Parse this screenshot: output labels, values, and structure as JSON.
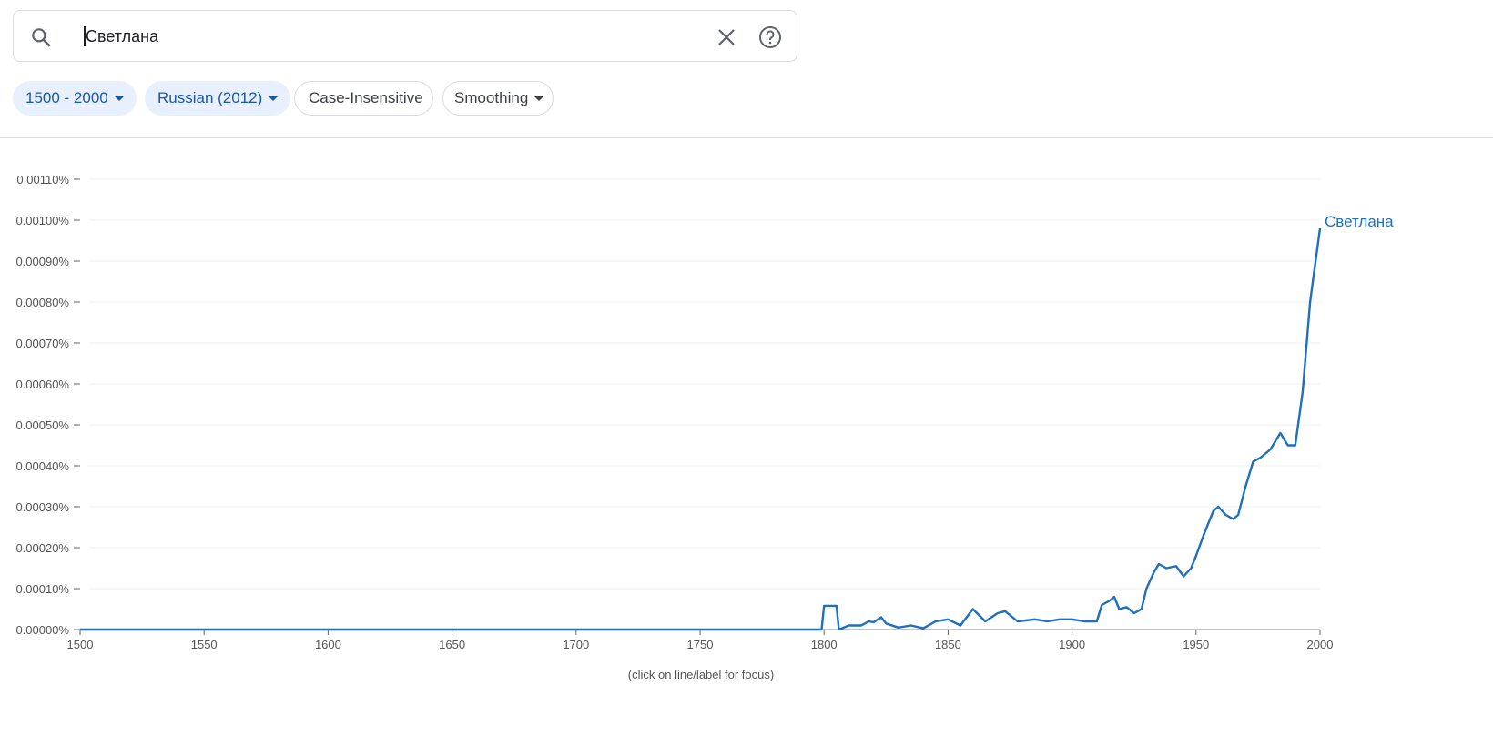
{
  "search": {
    "query": "Светлана",
    "icons": [
      "search-icon",
      "close-icon",
      "help-icon"
    ]
  },
  "filters": [
    {
      "label": "1500 - 2000",
      "selected": true,
      "dropdown": true
    },
    {
      "label": "Russian (2012)",
      "selected": true,
      "dropdown": true
    },
    {
      "label": "Case-Insensitive",
      "selected": false,
      "dropdown": false
    },
    {
      "label": "Smoothing",
      "selected": false,
      "dropdown": true
    }
  ],
  "footnote": "(click on line/label for focus)",
  "colors": {
    "series": "#1f6fc0",
    "chip_bg": "#e8f0fe",
    "chip_text": "#1a57a5"
  },
  "chart_data": {
    "type": "line",
    "xlim": [
      1500,
      2000
    ],
    "ylim": [
      0,
      0.0011
    ],
    "x_ticks": [
      "1500",
      "1550",
      "1600",
      "1650",
      "1700",
      "1750",
      "1800",
      "1850",
      "1900",
      "1950",
      "2000"
    ],
    "y_ticks": [
      "0.00000%",
      "0.00010%",
      "0.00020%",
      "0.00030%",
      "0.00040%",
      "0.00050%",
      "0.00060%",
      "0.00070%",
      "0.00080%",
      "0.00090%",
      "0.00100%",
      "0.00110%"
    ],
    "grid": true,
    "series": [
      {
        "name": "Светлана",
        "points": [
          [
            1500,
            0
          ],
          [
            1799,
            0
          ],
          [
            1800,
            5.8e-05
          ],
          [
            1805,
            5.8e-05
          ],
          [
            1806,
            0
          ],
          [
            1810,
            1e-05
          ],
          [
            1815,
            1e-05
          ],
          [
            1818,
            2e-05
          ],
          [
            1820,
            1.8e-05
          ],
          [
            1823,
            3e-05
          ],
          [
            1825,
            1.5e-05
          ],
          [
            1830,
            5e-06
          ],
          [
            1835,
            1e-05
          ],
          [
            1840,
            3e-06
          ],
          [
            1845,
            2e-05
          ],
          [
            1850,
            2.5e-05
          ],
          [
            1855,
            1e-05
          ],
          [
            1860,
            5e-05
          ],
          [
            1865,
            2e-05
          ],
          [
            1870,
            4e-05
          ],
          [
            1873,
            4.5e-05
          ],
          [
            1878,
            2e-05
          ],
          [
            1885,
            2.5e-05
          ],
          [
            1890,
            2e-05
          ],
          [
            1895,
            2.5e-05
          ],
          [
            1900,
            2.5e-05
          ],
          [
            1905,
            2e-05
          ],
          [
            1910,
            2e-05
          ],
          [
            1912,
            6e-05
          ],
          [
            1915,
            7e-05
          ],
          [
            1917,
            8e-05
          ],
          [
            1919,
            5e-05
          ],
          [
            1922,
            5.5e-05
          ],
          [
            1925,
            4e-05
          ],
          [
            1928,
            5e-05
          ],
          [
            1930,
            0.0001
          ],
          [
            1933,
            0.00014
          ],
          [
            1935,
            0.00016
          ],
          [
            1938,
            0.00015
          ],
          [
            1942,
            0.000155
          ],
          [
            1945,
            0.00013
          ],
          [
            1948,
            0.00015
          ],
          [
            1950,
            0.00018
          ],
          [
            1953,
            0.00023
          ],
          [
            1955,
            0.00026
          ],
          [
            1957,
            0.00029
          ],
          [
            1959,
            0.0003
          ],
          [
            1962,
            0.00028
          ],
          [
            1965,
            0.00027
          ],
          [
            1967,
            0.00028
          ],
          [
            1970,
            0.00035
          ],
          [
            1973,
            0.00041
          ],
          [
            1976,
            0.00042
          ],
          [
            1980,
            0.00044
          ],
          [
            1984,
            0.00048
          ],
          [
            1987,
            0.00045
          ],
          [
            1990,
            0.00045
          ],
          [
            1993,
            0.00058
          ],
          [
            1996,
            0.0008
          ],
          [
            2000,
            0.00098
          ]
        ]
      }
    ]
  }
}
